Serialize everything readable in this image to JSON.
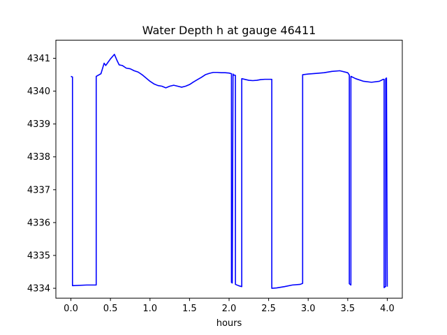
{
  "chart_data": {
    "type": "line",
    "title": "Water Depth h at gauge 46411",
    "xlabel": "hours",
    "ylabel": "",
    "xlim": [
      -0.19,
      4.19
    ],
    "ylim": [
      4333.7,
      4341.55
    ],
    "xticks": [
      0.0,
      0.5,
      1.0,
      1.5,
      2.0,
      2.5,
      3.0,
      3.5,
      4.0
    ],
    "xtick_labels": [
      "0.0",
      "0.5",
      "1.0",
      "1.5",
      "2.0",
      "2.5",
      "3.0",
      "3.5",
      "4.0"
    ],
    "yticks": [
      4334,
      4335,
      4336,
      4337,
      4338,
      4339,
      4340,
      4341
    ],
    "ytick_labels": [
      "4334",
      "4335",
      "4336",
      "4337",
      "4338",
      "4339",
      "4340",
      "4341"
    ],
    "grid": false,
    "series": [
      {
        "color": "#0000ff",
        "x": [
          0.0,
          0.02,
          0.02,
          0.2,
          0.32,
          0.32,
          0.38,
          0.42,
          0.44,
          0.47,
          0.5,
          0.55,
          0.58,
          0.61,
          0.65,
          0.7,
          0.75,
          0.8,
          0.85,
          0.9,
          0.95,
          1.0,
          1.05,
          1.1,
          1.15,
          1.2,
          1.25,
          1.3,
          1.35,
          1.4,
          1.45,
          1.5,
          1.55,
          1.6,
          1.65,
          1.7,
          1.75,
          1.8,
          1.85,
          1.9,
          1.95,
          2.0,
          2.03,
          2.03,
          2.04,
          2.05,
          2.05,
          2.08,
          2.08,
          2.12,
          2.16,
          2.16,
          2.25,
          2.3,
          2.35,
          2.4,
          2.45,
          2.5,
          2.54,
          2.54,
          2.6,
          2.7,
          2.8,
          2.9,
          2.93,
          2.93,
          3.0,
          3.1,
          3.2,
          3.3,
          3.4,
          3.5,
          3.52,
          3.52,
          3.54,
          3.54,
          3.6,
          3.7,
          3.8,
          3.9,
          3.95,
          3.96,
          3.96,
          3.98,
          3.98,
          3.99,
          4.0
        ],
        "y": [
          4340.45,
          4340.43,
          4334.08,
          4334.1,
          4334.1,
          4340.45,
          4340.53,
          4340.85,
          4340.78,
          4340.88,
          4340.98,
          4341.12,
          4340.95,
          4340.8,
          4340.78,
          4340.7,
          4340.68,
          4340.62,
          4340.58,
          4340.5,
          4340.4,
          4340.3,
          4340.22,
          4340.17,
          4340.15,
          4340.1,
          4340.15,
          4340.18,
          4340.15,
          4340.12,
          4340.15,
          4340.2,
          4340.28,
          4340.35,
          4340.42,
          4340.5,
          4340.54,
          4340.57,
          4340.57,
          4340.56,
          4340.56,
          4340.55,
          4340.53,
          4334.18,
          4334.16,
          4340.52,
          4340.5,
          4340.48,
          4334.12,
          4334.08,
          4334.05,
          4340.38,
          4340.33,
          4340.32,
          4340.33,
          4340.35,
          4340.36,
          4340.36,
          4340.36,
          4334.0,
          4334.01,
          4334.05,
          4334.1,
          4334.12,
          4334.15,
          4340.5,
          4340.52,
          4340.54,
          4340.56,
          4340.6,
          4340.62,
          4340.56,
          4340.49,
          4334.14,
          4334.1,
          4340.45,
          4340.38,
          4340.3,
          4340.27,
          4340.3,
          4340.36,
          4340.36,
          4334.02,
          4334.06,
          4340.38,
          4340.4,
          4334.05
        ]
      }
    ]
  }
}
